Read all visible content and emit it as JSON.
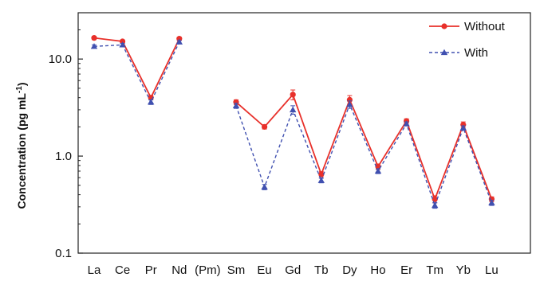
{
  "chart_data": {
    "type": "line",
    "ylabel_main": "Concentration (pg mL",
    "ylabel_sup": "-1",
    "ylabel_end": ")",
    "yscale": "log",
    "ylim": [
      0.1,
      30
    ],
    "yticks": [
      {
        "value": 0.1,
        "label": "0.1"
      },
      {
        "value": 1,
        "label": "1.0"
      },
      {
        "value": 10,
        "label": "10.0"
      }
    ],
    "categories": [
      "La",
      "Ce",
      "Pr",
      "Nd",
      "(Pm)",
      "Sm",
      "Eu",
      "Gd",
      "Tb",
      "Dy",
      "Ho",
      "Er",
      "Tm",
      "Yb",
      "Lu"
    ],
    "legend_position": "top-right",
    "series": [
      {
        "name": "Without",
        "color": "#e8302a",
        "line_style": "solid",
        "marker": "circle",
        "values": [
          16.5,
          15.2,
          4.0,
          16.2,
          null,
          3.6,
          2.0,
          4.3,
          0.65,
          3.8,
          0.78,
          2.3,
          0.36,
          2.1,
          0.36
        ],
        "errors": [
          0.6,
          0.5,
          0.2,
          0.6,
          null,
          0.2,
          0.1,
          0.5,
          0.04,
          0.4,
          0.05,
          0.12,
          0.03,
          0.15,
          0.02
        ]
      },
      {
        "name": "With",
        "color": "#4050b0",
        "line_style": "dashed",
        "marker": "triangle",
        "values": [
          13.5,
          14.0,
          3.6,
          15.0,
          null,
          3.3,
          0.48,
          3.0,
          0.56,
          3.4,
          0.7,
          2.15,
          0.31,
          1.95,
          0.33
        ],
        "errors": [
          0.5,
          0.5,
          0.2,
          0.5,
          null,
          0.2,
          0.03,
          0.3,
          0.03,
          0.3,
          0.04,
          0.1,
          0.02,
          0.1,
          0.02
        ]
      }
    ]
  }
}
